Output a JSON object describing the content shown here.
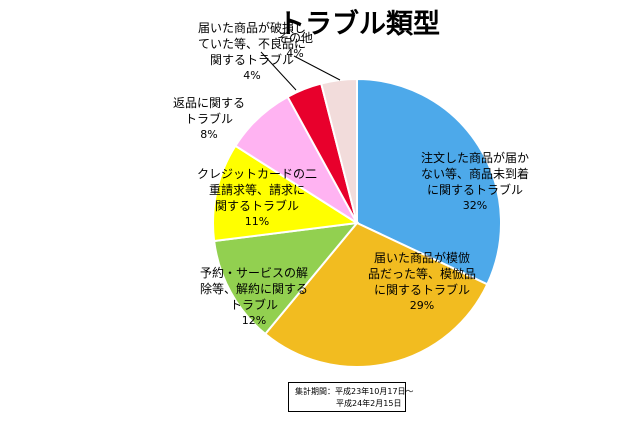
{
  "chart_data": {
    "type": "pie",
    "title": "トラブル類型",
    "slices": [
      {
        "label_lines": [
          "注文した商品が届か",
          "ない等、商品未到着",
          "に関するトラブル"
        ],
        "value": 32,
        "value_label": "32%",
        "color": "#4DA9EA"
      },
      {
        "label_lines": [
          "届いた商品が模倣",
          "品だった等、模倣品",
          "に関するトラブル"
        ],
        "value": 29,
        "value_label": "29%",
        "color": "#F2BC20"
      },
      {
        "label_lines": [
          "予約・サービスの解",
          "除等、解約に関する",
          "トラブル"
        ],
        "value": 12,
        "value_label": "12%",
        "color": "#92D050"
      },
      {
        "label_lines": [
          "クレジットカードの二",
          "重請求等、請求に",
          "関するトラブル"
        ],
        "value": 11,
        "value_label": "11%",
        "color": "#FFFF00"
      },
      {
        "label_lines": [
          "返品に関する",
          "トラブル"
        ],
        "value": 8,
        "value_label": "8%",
        "color": "#FFB3F2"
      },
      {
        "label_lines": [
          "届いた商品が破損し",
          "ていた等、不良品に",
          "関するトラブル"
        ],
        "value": 4,
        "value_label": "4%",
        "color": "#E8002C"
      },
      {
        "label_lines": [
          "その他"
        ],
        "value": 4,
        "value_label": "4%",
        "color": "#F2DCDB"
      }
    ]
  },
  "period_note": {
    "line1": "集計期間：平成23年10月17日～",
    "line2": "平成24年2月15日"
  }
}
